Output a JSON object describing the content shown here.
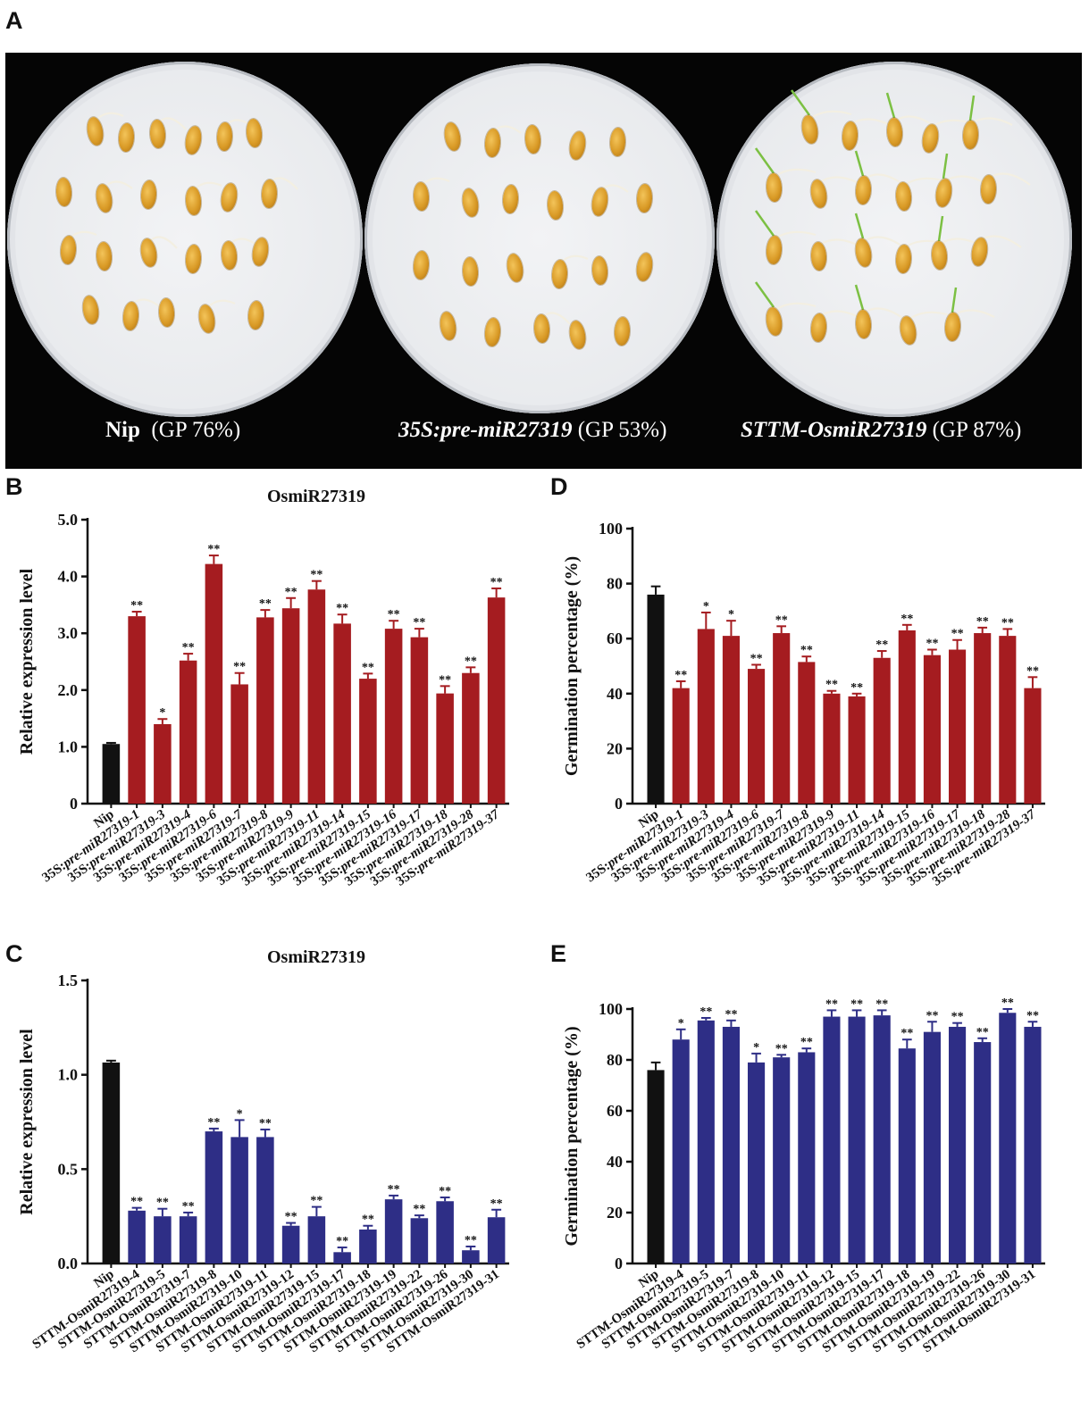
{
  "panels": {
    "a": "A",
    "b": "B",
    "c": "C",
    "d": "D",
    "e": "E"
  },
  "photo": {
    "dishes": [
      {
        "name": "Nip",
        "suffix": "(GP 76%)",
        "italic": false
      },
      {
        "name": "35S:pre-miR27319",
        "suffix": "(GP 53%)",
        "italic": true
      },
      {
        "name": "STTM-OsmiR27319",
        "suffix": "(GP 87%)",
        "italic": true
      }
    ],
    "seed_color": "#d99a26",
    "background_color": "#050505"
  },
  "colors": {
    "control": "#111111",
    "overexpression": "#a51c20",
    "sttm": "#2e2e86"
  },
  "chart_data": [
    {
      "id": "B",
      "type": "bar",
      "title": "OsmiR27319",
      "xlabel": "",
      "ylabel": "Relative expression level",
      "ylim": [
        0,
        5.0
      ],
      "yticks": [
        "0",
        "1.0",
        "2.0",
        "3.0",
        "4.0",
        "5.0"
      ],
      "ytick_values": [
        0,
        1,
        2,
        3,
        4,
        5
      ],
      "categories": [
        "Nip",
        "35S:pre-miR27319-1",
        "35S:pre-miR27319-3",
        "35S:pre-miR27319-4",
        "35S:pre-miR27319-6",
        "35S:pre-miR27319-7",
        "35S:pre-miR27319-8",
        "35S:pre-miR27319-9",
        "35S:pre-miR27319-11",
        "35S:pre-miR27319-14",
        "35S:pre-miR27319-15",
        "35S:pre-miR27319-16",
        "35S:pre-miR27319-17",
        "35S:pre-miR27319-18",
        "35S:pre-miR27319-28",
        "35S:pre-miR27319-37"
      ],
      "values": [
        1.05,
        3.3,
        1.4,
        2.52,
        4.22,
        2.1,
        3.28,
        3.44,
        3.77,
        3.17,
        2.2,
        3.08,
        2.93,
        1.94,
        2.3,
        3.63
      ],
      "errors": [
        0.02,
        0.08,
        0.09,
        0.12,
        0.15,
        0.2,
        0.13,
        0.18,
        0.15,
        0.16,
        0.09,
        0.14,
        0.15,
        0.13,
        0.1,
        0.16
      ],
      "significance": [
        "",
        "**",
        "*",
        "**",
        "**",
        "**",
        "**",
        "**",
        "**",
        "**",
        "**",
        "**",
        "**",
        "**",
        "**",
        "**"
      ]
    },
    {
      "id": "C",
      "type": "bar",
      "title": "OsmiR27319",
      "xlabel": "",
      "ylabel": "Relative expression level",
      "ylim": [
        0,
        1.5
      ],
      "yticks": [
        "0.0",
        "0.5",
        "1.0",
        "1.5"
      ],
      "ytick_values": [
        0,
        0.5,
        1.0,
        1.5
      ],
      "categories": [
        "Nip",
        "STTM-OsmiR27319-4",
        "STTM-OsmiR27319-5",
        "STTM-OsmiR27319-7",
        "STTM-OsmiR27319-8",
        "STTM-OsmiR27319-10",
        "STTM-OsmiR27319-11",
        "STTM-OsmiR27319-12",
        "STTM-OsmiR27319-15",
        "STTM-OsmiR27319-17",
        "STTM-OsmiR27319-18",
        "STTM-OsmiR27319-19",
        "STTM-OsmiR27319-22",
        "STTM-OsmiR27319-26",
        "STTM-OsmiR27319-30",
        "STTM-OsmiR27319-31"
      ],
      "values": [
        1.065,
        0.28,
        0.25,
        0.25,
        0.7,
        0.67,
        0.67,
        0.2,
        0.25,
        0.06,
        0.18,
        0.34,
        0.24,
        0.33,
        0.07,
        0.245
      ],
      "errors": [
        0.01,
        0.015,
        0.04,
        0.02,
        0.015,
        0.09,
        0.04,
        0.015,
        0.05,
        0.025,
        0.02,
        0.02,
        0.015,
        0.02,
        0.02,
        0.04
      ],
      "significance": [
        "",
        "**",
        "**",
        "**",
        "**",
        "*",
        "**",
        "**",
        "**",
        "**",
        "**",
        "**",
        "**",
        "**",
        "**",
        "**"
      ]
    },
    {
      "id": "D",
      "type": "bar",
      "title": "",
      "xlabel": "",
      "ylabel": "Germination percentage (%)",
      "ylim": [
        0,
        100
      ],
      "yticks": [
        "0",
        "20",
        "40",
        "60",
        "80",
        "100"
      ],
      "ytick_values": [
        0,
        20,
        40,
        60,
        80,
        100
      ],
      "categories": [
        "Nip",
        "35S:pre-miR27319-1",
        "35S:pre-miR27319-3",
        "35S:pre-miR27319-4",
        "35S:pre-miR27319-6",
        "35S:pre-miR27319-7",
        "35S:pre-miR27319-8",
        "35S:pre-miR27319-9",
        "35S:pre-miR27319-11",
        "35S:pre-miR27319-14",
        "35S:pre-miR27319-15",
        "35S:pre-miR27319-16",
        "35S:pre-miR27319-17",
        "35S:pre-miR27319-18",
        "35S:pre-miR27319-28",
        "35S:pre-miR27319-37"
      ],
      "values": [
        76,
        42,
        63.5,
        61,
        49,
        62,
        51.5,
        40,
        39,
        53,
        63,
        54,
        56,
        62,
        61,
        42
      ],
      "errors": [
        3,
        2.5,
        6,
        5.5,
        1.5,
        2.5,
        2,
        1,
        1,
        2.5,
        2,
        2,
        3.5,
        2,
        2.5,
        4
      ],
      "significance": [
        "",
        "**",
        "*",
        "*",
        "**",
        "**",
        "**",
        "**",
        "**",
        "**",
        "**",
        "**",
        "**",
        "**",
        "**",
        "**"
      ]
    },
    {
      "id": "E",
      "type": "bar",
      "title": "",
      "xlabel": "",
      "ylabel": "Germination percentage (%)",
      "ylim": [
        0,
        100
      ],
      "yticks": [
        "0",
        "20",
        "40",
        "60",
        "80",
        "100"
      ],
      "ytick_values": [
        0,
        20,
        40,
        60,
        80,
        100
      ],
      "categories": [
        "Nip",
        "STTM-OsmiR27319-4",
        "STTM-OsmiR27319-5",
        "STTM-OsmiR27319-7",
        "STTM-OsmiR27319-8",
        "STTM-OsmiR27319-10",
        "STTM-OsmiR27319-11",
        "STTM-OsmiR27319-12",
        "STTM-OsmiR27319-15",
        "STTM-OsmiR27319-17",
        "STTM-OsmiR27319-18",
        "STTM-OsmiR27319-19",
        "STTM-OsmiR27319-22",
        "STTM-OsmiR27319-26",
        "STTM-OsmiR27319-30",
        "STTM-OsmiR27319-31"
      ],
      "values": [
        76,
        88,
        95.5,
        93,
        79,
        81,
        83,
        97,
        97,
        97.5,
        84.5,
        91,
        93,
        87,
        98.5,
        93
      ],
      "errors": [
        3,
        4,
        1,
        2.5,
        3.5,
        1,
        1.5,
        2.5,
        2.5,
        2,
        3.5,
        4,
        1.5,
        1.5,
        1.5,
        2
      ],
      "significance": [
        "",
        "*",
        "**",
        "**",
        "*",
        "**",
        "**",
        "**",
        "**",
        "**",
        "**",
        "**",
        "**",
        "**",
        "**",
        "**"
      ]
    }
  ]
}
